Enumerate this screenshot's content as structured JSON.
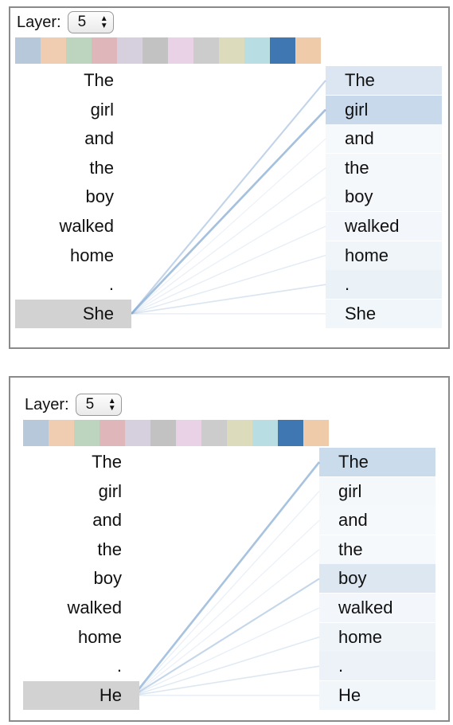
{
  "layer_label": "Layer:",
  "layer_value": "5",
  "swatch_colors": [
    "#b6c8d9",
    "#f0cdb1",
    "#bdd4be",
    "#dfb7ba",
    "#d6d0de",
    "#c2c2c2",
    "#ead2e6",
    "#cccccc",
    "#dcdcbd",
    "#b8dde2",
    "#3e77b1",
    "#efcba9"
  ],
  "line_color": "#7ea6d0",
  "panels": [
    {
      "selected_token": "She",
      "left_tokens": [
        "The",
        "girl",
        "and",
        "the",
        "boy",
        "walked",
        "home",
        ".",
        "She"
      ],
      "right_tokens": [
        "The",
        "girl",
        "and",
        "the",
        "boy",
        "walked",
        "home",
        ".",
        "She"
      ],
      "attention": [
        0.42,
        0.68,
        0.03,
        0.05,
        0.06,
        0.08,
        0.12,
        0.2,
        0.1
      ]
    },
    {
      "selected_token": "He",
      "left_tokens": [
        "The",
        "girl",
        "and",
        "the",
        "boy",
        "walked",
        "home",
        ".",
        "He"
      ],
      "right_tokens": [
        "The",
        "girl",
        "and",
        "the",
        "boy",
        "walked",
        "home",
        ".",
        "He"
      ],
      "attention": [
        0.65,
        0.06,
        0.04,
        0.04,
        0.4,
        0.07,
        0.14,
        0.18,
        0.1
      ]
    }
  ]
}
